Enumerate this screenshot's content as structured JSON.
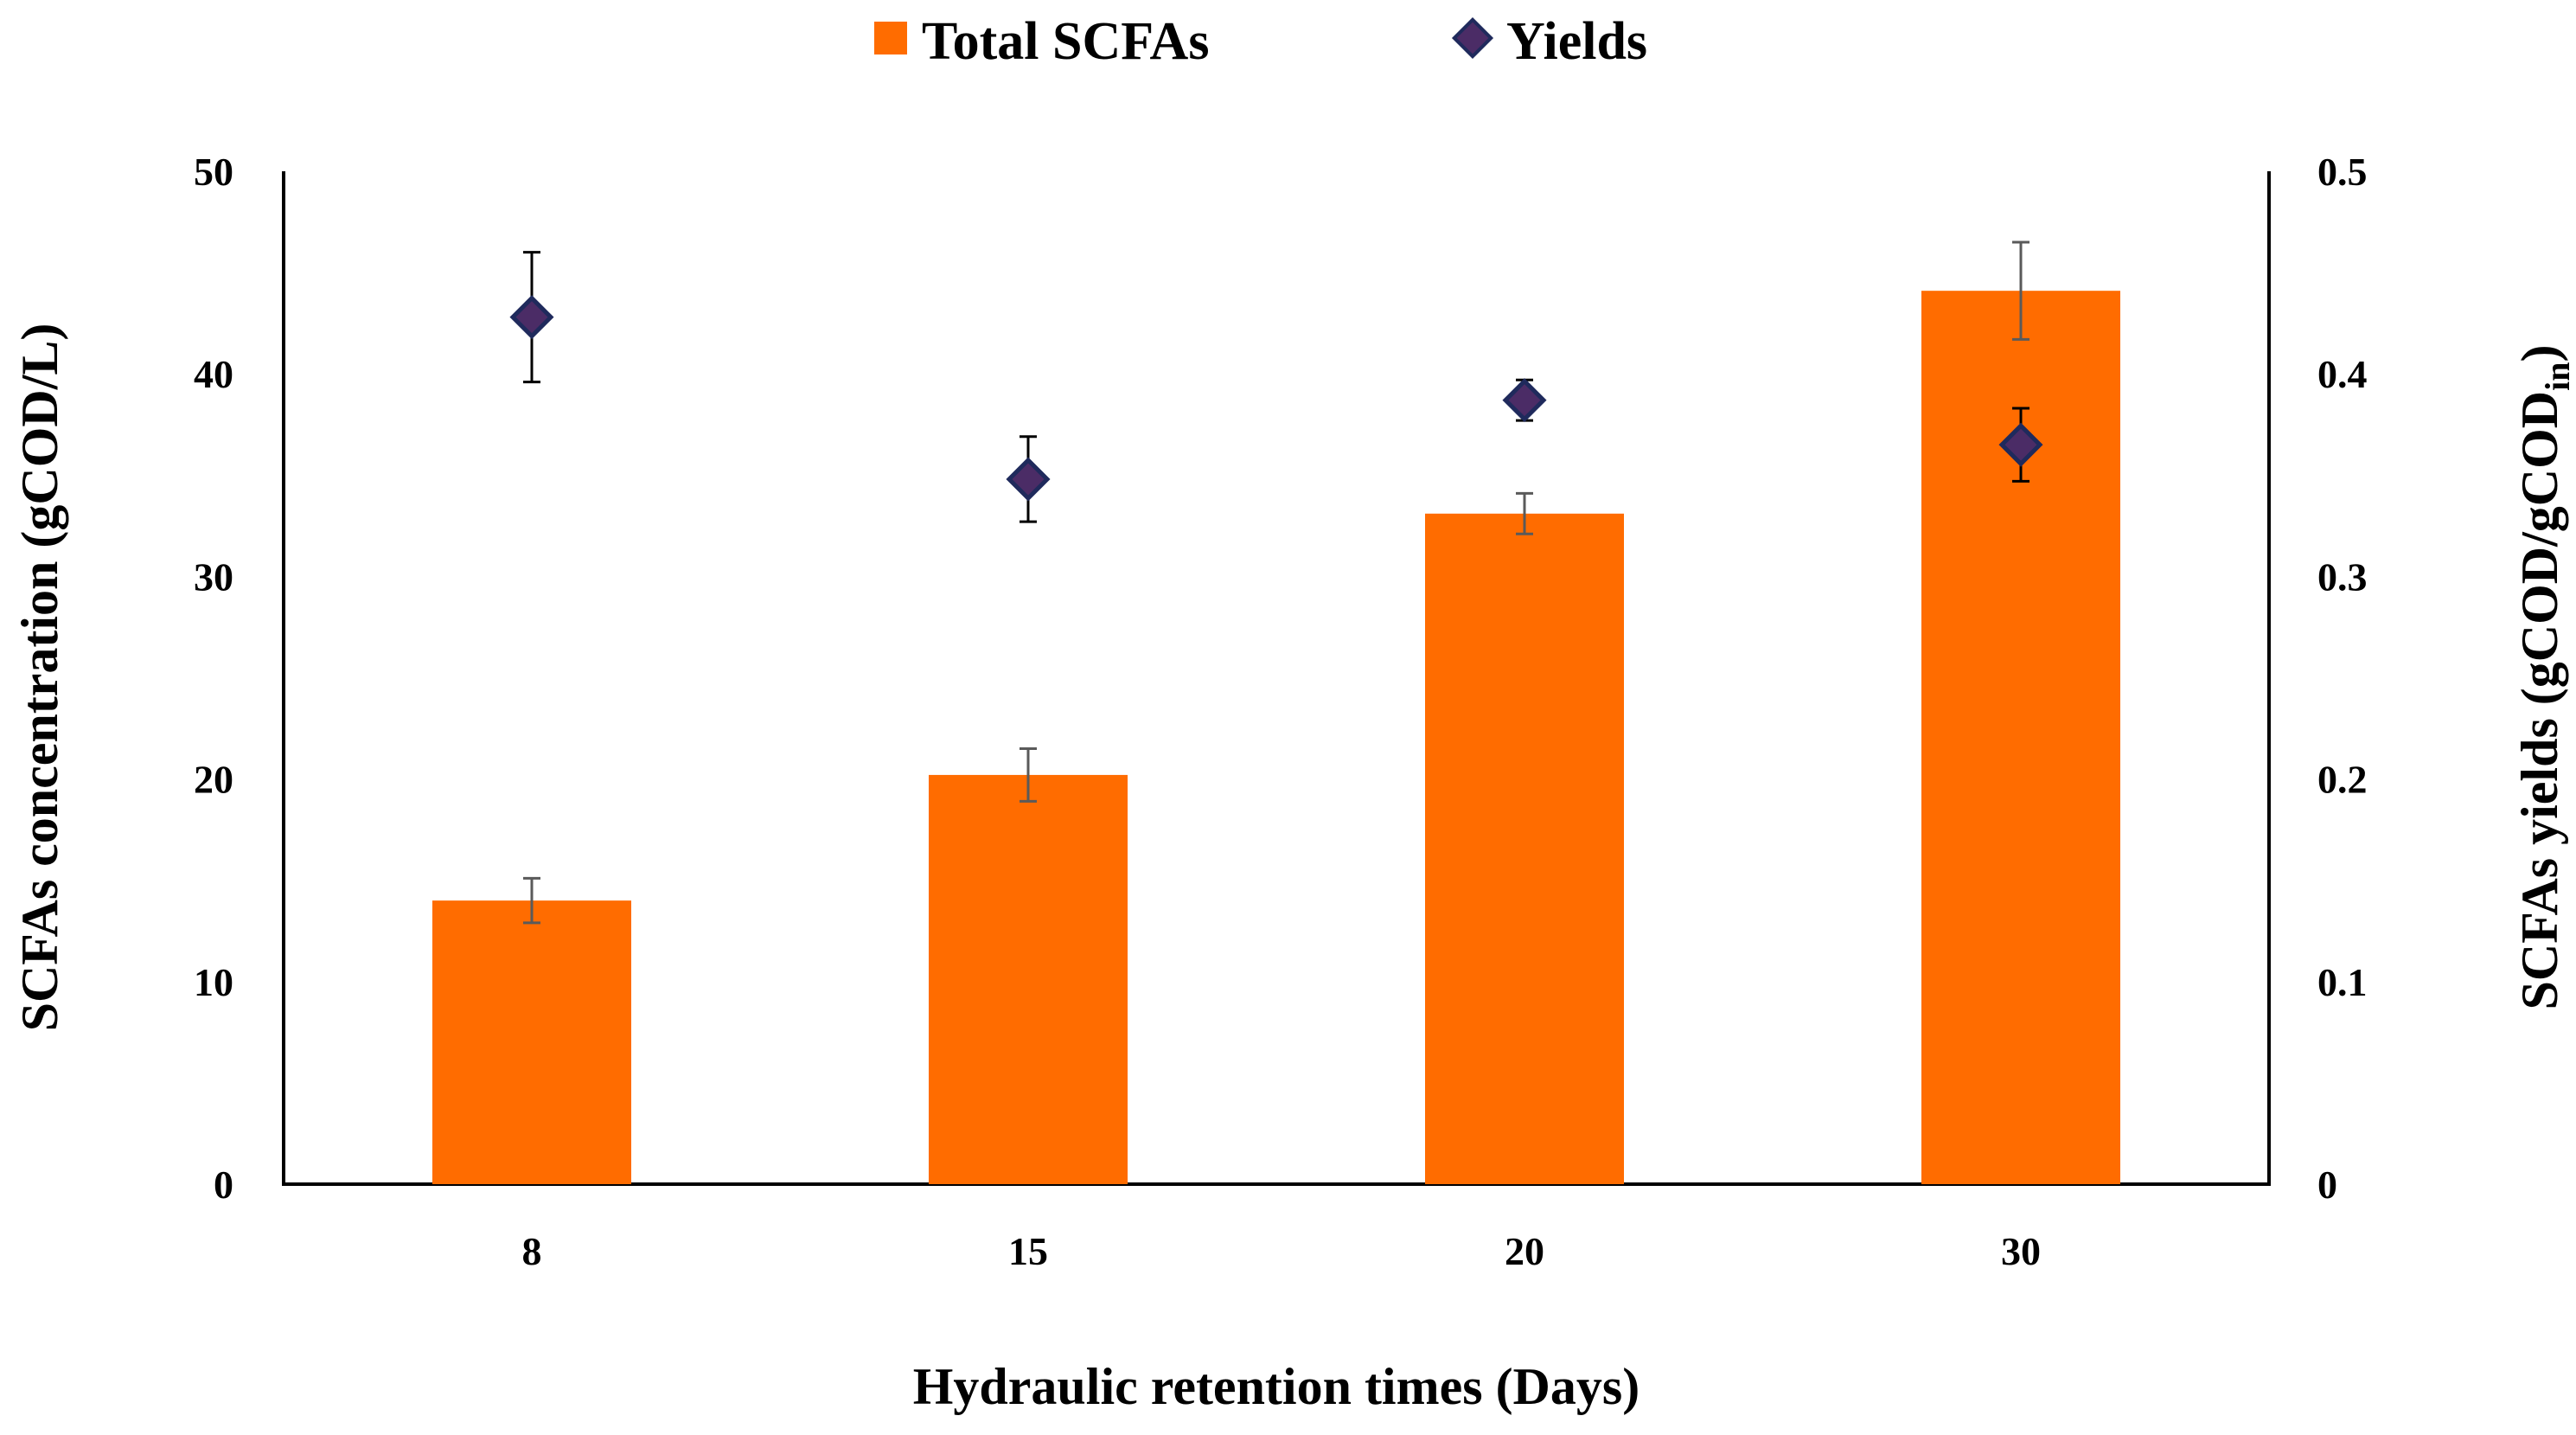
{
  "chart_data": {
    "type": "bar",
    "xlabel": "Hydraulic retention times (Days)",
    "ylabel": "SCFAs concentration (gCOD/L)",
    "y2label": {
      "main": "SCFAs yields (gCOD/gCOD",
      "sub": "in",
      "close": ")"
    },
    "categories": [
      "8",
      "15",
      "20",
      "30"
    ],
    "ylim": [
      0,
      50
    ],
    "y2lim": [
      0,
      0.5
    ],
    "yticks": [
      "0",
      "10",
      "20",
      "30",
      "40",
      "50"
    ],
    "y2ticks": [
      "0",
      "0.1",
      "0.2",
      "0.3",
      "0.4",
      "0.5"
    ],
    "grid": false,
    "legend_position": "top-center",
    "series": [
      {
        "name": "Total SCFAs",
        "kind": "bar",
        "axis": "left",
        "color": "#FF6C00",
        "values": [
          14.0,
          20.2,
          33.1,
          44.1
        ],
        "errors": [
          1.1,
          1.3,
          1.0,
          2.4
        ]
      },
      {
        "name": "Yields",
        "kind": "scatter",
        "marker": "diamond",
        "axis": "right",
        "color": "#1F2A5C",
        "fill": "#4B2C66",
        "values": [
          0.428,
          0.348,
          0.387,
          0.365
        ],
        "errors": [
          0.032,
          0.021,
          0.01,
          0.018
        ]
      }
    ]
  }
}
